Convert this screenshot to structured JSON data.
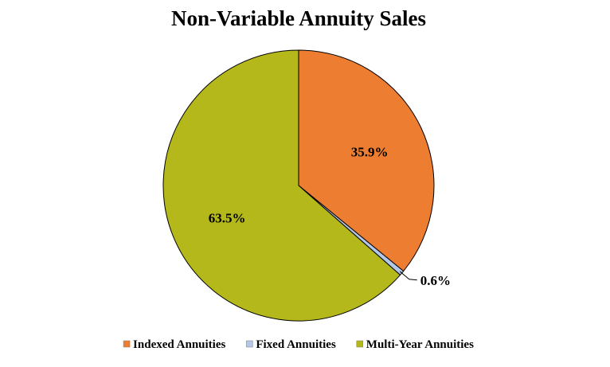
{
  "chart_data": {
    "type": "pie",
    "title": "Non-Variable Annuity Sales",
    "slices": [
      {
        "name": "Indexed Annuities",
        "value": 35.9,
        "label": "35.9%",
        "color": "#ED7D31"
      },
      {
        "name": "Fixed Annuities",
        "value": 0.6,
        "label": "0.6%",
        "color": "#B4C7E7"
      },
      {
        "name": "Multi-Year Annuities",
        "value": 63.5,
        "label": "63.5%",
        "color": "#B5B81A"
      }
    ],
    "start_angle": "12 o'clock, clockwise",
    "legend_placement": "bottom"
  }
}
